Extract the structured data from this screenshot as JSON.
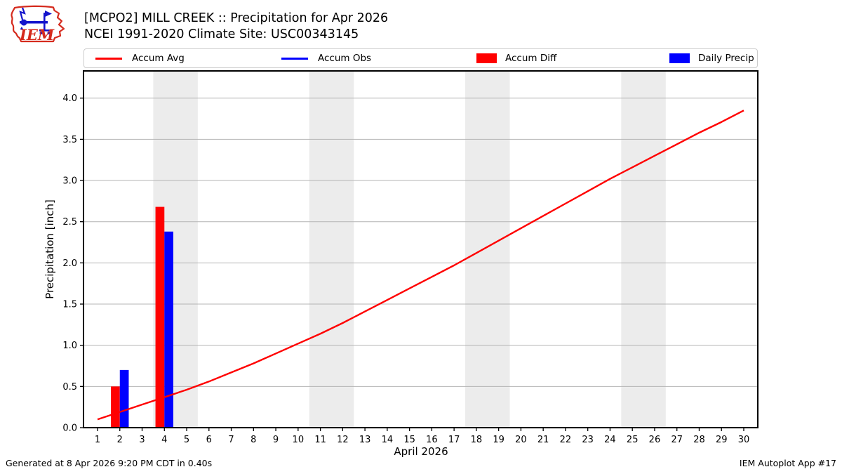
{
  "logo": {
    "text": "IEM"
  },
  "header": {
    "title_line1": "[MCPO2] MILL CREEK :: Precipitation for Apr 2026",
    "title_line2": "NCEI 1991-2020 Climate Site: USC00343145"
  },
  "legend": {
    "items": [
      {
        "label": "Accum Avg",
        "swatch": "line",
        "color": "#ff0000"
      },
      {
        "label": "Accum Obs",
        "swatch": "line",
        "color": "#0000ff"
      },
      {
        "label": "Accum Diff",
        "swatch": "box",
        "color": "#ff0000"
      },
      {
        "label": "Daily Precip",
        "swatch": "box",
        "color": "#0000ff"
      }
    ]
  },
  "chart_data": {
    "type": "line+bar",
    "title": "[MCPO2] MILL CREEK :: Precipitation for Apr 2026",
    "subtitle": "NCEI 1991-2020 Climate Site: USC00343145",
    "xlabel": "April 2026",
    "ylabel": "Precipitation [inch]",
    "xlim": [
      0.37,
      30.63
    ],
    "ylim": [
      0,
      4.33
    ],
    "x_ticks": [
      1,
      2,
      3,
      4,
      5,
      6,
      7,
      8,
      9,
      10,
      11,
      12,
      13,
      14,
      15,
      16,
      17,
      18,
      19,
      20,
      21,
      22,
      23,
      24,
      25,
      26,
      27,
      28,
      29,
      30
    ],
    "y_ticks": [
      0.0,
      0.5,
      1.0,
      1.5,
      2.0,
      2.5,
      3.0,
      3.5,
      4.0
    ],
    "grid": "horizontal",
    "grid_color": "#b4b4b4",
    "band_color": "#ececec",
    "weekend_bands": [
      [
        3.5,
        5.5
      ],
      [
        10.5,
        12.5
      ],
      [
        17.5,
        19.5
      ],
      [
        24.5,
        26.5
      ]
    ],
    "series": [
      {
        "name": "Accum Avg",
        "type": "line",
        "color": "#ff0000",
        "x": [
          1,
          2,
          3,
          4,
          5,
          6,
          7,
          8,
          9,
          10,
          11,
          12,
          13,
          14,
          15,
          16,
          17,
          18,
          19,
          20,
          21,
          22,
          23,
          24,
          25,
          26,
          27,
          28,
          29,
          30
        ],
        "values": [
          0.1,
          0.19,
          0.28,
          0.37,
          0.46,
          0.56,
          0.67,
          0.78,
          0.9,
          1.02,
          1.14,
          1.27,
          1.41,
          1.55,
          1.69,
          1.83,
          1.97,
          2.12,
          2.27,
          2.42,
          2.57,
          2.72,
          2.87,
          3.02,
          3.16,
          3.3,
          3.44,
          3.58,
          3.71,
          3.85
        ]
      },
      {
        "name": "Accum Diff",
        "type": "bar",
        "color": "#ff0000",
        "bar_offset": -0.2,
        "bar_width": 0.4,
        "x": [
          2,
          4
        ],
        "values": [
          0.5,
          2.68
        ]
      },
      {
        "name": "Daily Precip",
        "type": "bar",
        "color": "#0000ff",
        "bar_offset": 0.2,
        "bar_width": 0.4,
        "x": [
          2,
          4
        ],
        "values": [
          0.7,
          2.38
        ]
      }
    ]
  },
  "footer": {
    "left": "Generated at 8 Apr 2026 9:20 PM CDT in 0.40s",
    "right": "IEM Autoplot App #17"
  }
}
